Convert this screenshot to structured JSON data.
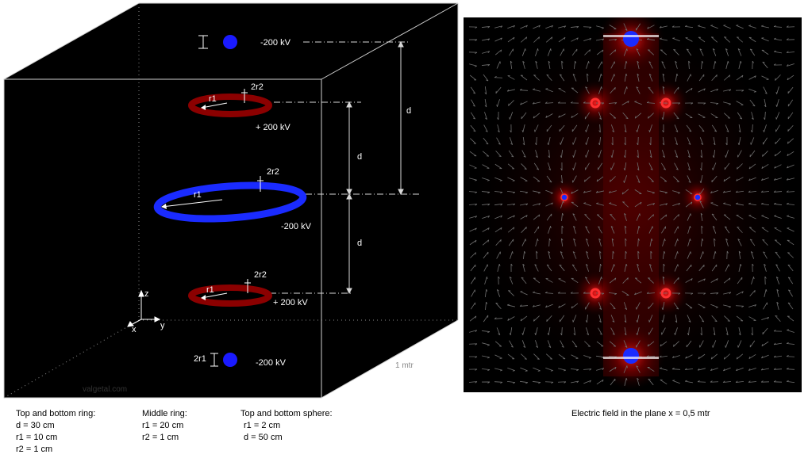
{
  "diagram": {
    "labels": {
      "top_sphere_voltage": "-200 kV",
      "top_ring_voltage": "+ 200 kV",
      "middle_ring_voltage": "-200  kV",
      "bottom_ring_voltage": "+ 200 kV",
      "bottom_sphere_voltage": "-200 kV",
      "r1": "r1",
      "r2": "2r2",
      "sphere_r": "2r1",
      "d": "d",
      "axis_x": "x",
      "axis_y": "y",
      "axis_z": "z",
      "scale": "1 mtr",
      "watermark": "valgetal.com"
    },
    "colors": {
      "background": "#000000",
      "ring_outer": "#8b0000",
      "ring_middle": "#1a2bff",
      "sphere": "#1a1aff",
      "box_edges": "#cccccc"
    }
  },
  "specs": {
    "top_bottom_ring": {
      "title": "Top and bottom ring:",
      "lines": [
        "d = 30 cm",
        "r1 = 10 cm",
        "r2 = 1 cm"
      ]
    },
    "middle_ring": {
      "title": "Middle ring:",
      "lines": [
        "r1 = 20 cm",
        "r2 = 1 cm"
      ]
    },
    "spheres": {
      "title": "Top and bottom sphere:",
      "lines": [
        "r1 = 2 cm",
        "d = 50 cm"
      ]
    }
  },
  "field_plot": {
    "caption": "Electric field in the plane x = 0,5 mtr"
  }
}
